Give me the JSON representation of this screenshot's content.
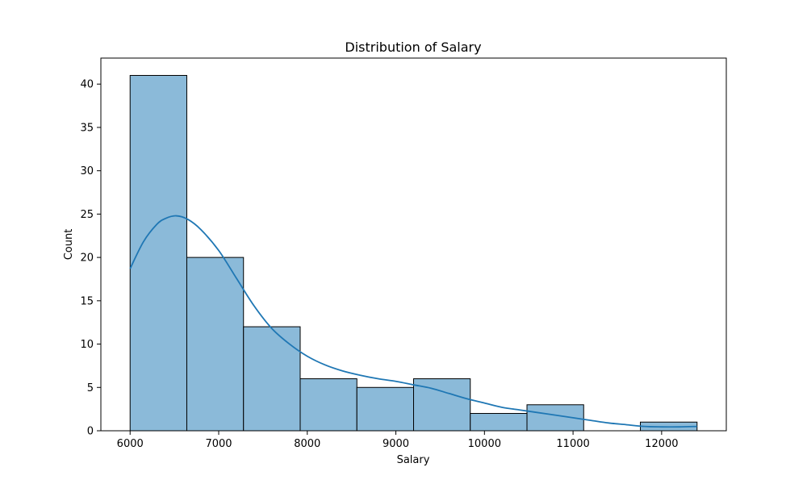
{
  "chart_data": {
    "type": "bar",
    "title": "Distribution of Salary",
    "xlabel": "Salary",
    "ylabel": "Count",
    "xlim": [
      5670,
      12730
    ],
    "ylim": [
      0,
      43
    ],
    "bins": [
      {
        "x0": 6000,
        "x1": 6640,
        "count": 41
      },
      {
        "x0": 6640,
        "x1": 7280,
        "count": 20
      },
      {
        "x0": 7280,
        "x1": 7920,
        "count": 12
      },
      {
        "x0": 7920,
        "x1": 8560,
        "count": 6
      },
      {
        "x0": 8560,
        "x1": 9200,
        "count": 5
      },
      {
        "x0": 9200,
        "x1": 9840,
        "count": 6
      },
      {
        "x0": 9840,
        "x1": 10480,
        "count": 2
      },
      {
        "x0": 10480,
        "x1": 11120,
        "count": 3
      },
      {
        "x0": 11120,
        "x1": 11760,
        "count": 0
      },
      {
        "x0": 11760,
        "x1": 12400,
        "count": 1
      }
    ],
    "kde": {
      "x": [
        6000,
        6150,
        6300,
        6400,
        6520,
        6650,
        6800,
        7000,
        7200,
        7400,
        7600,
        7800,
        8000,
        8200,
        8400,
        8600,
        8800,
        9000,
        9200,
        9400,
        9600,
        9800,
        10000,
        10200,
        10400,
        10600,
        10800,
        11000,
        11200,
        11400,
        11600,
        11800,
        12000,
        12200,
        12400
      ],
      "y": [
        18.7,
        21.8,
        23.8,
        24.5,
        24.8,
        24.4,
        23.2,
        20.8,
        17.6,
        14.4,
        11.8,
        10.0,
        8.6,
        7.6,
        6.9,
        6.4,
        6.0,
        5.7,
        5.3,
        4.9,
        4.3,
        3.7,
        3.2,
        2.7,
        2.4,
        2.1,
        1.8,
        1.5,
        1.2,
        0.9,
        0.7,
        0.5,
        0.45,
        0.45,
        0.5
      ]
    },
    "xticks": [
      6000,
      7000,
      8000,
      9000,
      10000,
      11000,
      12000
    ],
    "yticks": [
      0,
      5,
      10,
      15,
      20,
      25,
      30,
      35,
      40
    ],
    "bar_color": "#8bbad9",
    "line_color": "#1f77b4",
    "edge_color": "#000000",
    "grid": false
  }
}
